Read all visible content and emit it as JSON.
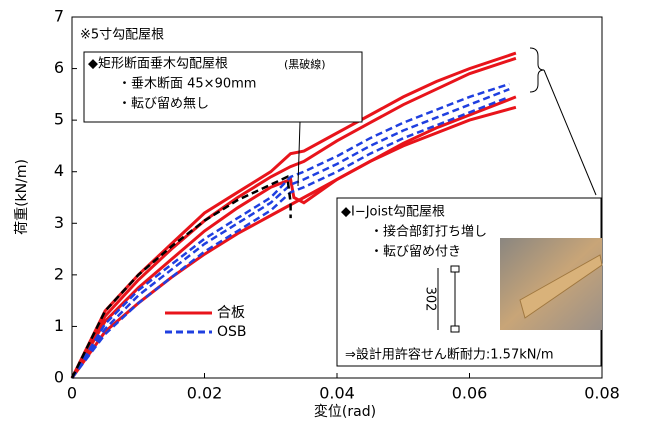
{
  "chart_data": {
    "type": "line",
    "x_label": "変位(rad)",
    "y_label": "荷重(kN/m)",
    "xlim": [
      0,
      0.08
    ],
    "xticks": [
      0,
      0.02,
      0.04,
      0.06,
      0.08
    ],
    "ylim": [
      0,
      7
    ],
    "yticks": [
      0,
      1,
      2,
      3,
      4,
      5,
      6,
      7
    ],
    "series": [
      {
        "name": "合板",
        "color": "#e8141b",
        "style": "solid",
        "curves": [
          {
            "x": [
              0,
              0.005,
              0.01,
              0.015,
              0.02,
              0.025,
              0.03,
              0.033,
              0.035,
              0.04,
              0.045,
              0.05,
              0.055,
              0.06,
              0.067
            ],
            "values": [
              0,
              1.3,
              2.0,
              2.6,
              3.2,
              3.6,
              4.0,
              4.35,
              4.4,
              4.75,
              5.1,
              5.45,
              5.75,
              6.0,
              6.3
            ]
          },
          {
            "x": [
              0,
              0.005,
              0.01,
              0.015,
              0.02,
              0.025,
              0.03,
              0.033,
              0.035,
              0.04,
              0.045,
              0.05,
              0.055,
              0.06,
              0.067
            ],
            "values": [
              0,
              1.2,
              1.9,
              2.5,
              3.05,
              3.5,
              3.9,
              4.1,
              4.2,
              4.6,
              4.95,
              5.3,
              5.6,
              5.9,
              6.2
            ]
          },
          {
            "x": [
              0,
              0.005,
              0.01,
              0.015,
              0.02,
              0.025,
              0.03,
              0.033,
              0.0335,
              0.035,
              0.04,
              0.045,
              0.05,
              0.055,
              0.06,
              0.067
            ],
            "values": [
              0,
              1.1,
              1.75,
              2.3,
              2.85,
              3.3,
              3.7,
              3.85,
              3.5,
              3.4,
              3.85,
              4.2,
              4.55,
              4.85,
              5.1,
              5.45
            ]
          },
          {
            "x": [
              0,
              0.005,
              0.01,
              0.015,
              0.02,
              0.025,
              0.03,
              0.035,
              0.04,
              0.045,
              0.05,
              0.055,
              0.06,
              0.067
            ],
            "values": [
              0,
              0.9,
              1.45,
              1.95,
              2.4,
              2.8,
              3.15,
              3.5,
              3.85,
              4.2,
              4.5,
              4.75,
              5.0,
              5.25
            ]
          }
        ]
      },
      {
        "name": "OSB",
        "color": "#1f3fe0",
        "style": "dashed",
        "curves": [
          {
            "x": [
              0,
              0.005,
              0.01,
              0.015,
              0.02,
              0.025,
              0.03,
              0.033,
              0.035,
              0.04,
              0.045,
              0.05,
              0.055,
              0.06,
              0.066
            ],
            "values": [
              0,
              1.05,
              1.7,
              2.2,
              2.7,
              3.1,
              3.5,
              3.9,
              4.0,
              4.3,
              4.65,
              4.95,
              5.2,
              5.45,
              5.7
            ]
          },
          {
            "x": [
              0,
              0.005,
              0.01,
              0.015,
              0.02,
              0.025,
              0.03,
              0.033,
              0.035,
              0.04,
              0.045,
              0.05,
              0.055,
              0.06,
              0.066
            ],
            "values": [
              0,
              0.95,
              1.6,
              2.1,
              2.6,
              3.0,
              3.4,
              3.75,
              3.85,
              4.15,
              4.5,
              4.8,
              5.05,
              5.3,
              5.6
            ]
          },
          {
            "x": [
              0,
              0.005,
              0.01,
              0.015,
              0.02,
              0.025,
              0.03,
              0.033,
              0.035,
              0.04,
              0.045,
              0.05,
              0.055,
              0.06,
              0.066
            ],
            "values": [
              0,
              0.85,
              1.45,
              1.95,
              2.45,
              2.85,
              3.25,
              3.6,
              3.7,
              4.0,
              4.35,
              4.65,
              4.9,
              5.15,
              5.45
            ]
          }
        ]
      },
      {
        "color": "#000000",
        "style": "dashed",
        "curves": [
          {
            "x": [
              0,
              0.005,
              0.01,
              0.015,
              0.02,
              0.025,
              0.03,
              0.0325,
              0.033,
              0.033
            ],
            "values": [
              0,
              1.3,
              2.0,
              2.55,
              3.05,
              3.45,
              3.75,
              3.9,
              3.4,
              3.1
            ]
          }
        ]
      }
    ],
    "annotations": {
      "roof": "※5寸勾配屋根",
      "box1": [
        "◆矩形断面垂木勾配屋根",
        "(黒破線)",
        "・垂木断面 45×90mm",
        "・転び留め無し"
      ],
      "box2": [
        "◆I−Joist勾配屋根",
        "・接合部釘打ち増し",
        "・転び留め付き"
      ],
      "depth": "302",
      "allowable": "⇒設計用許容せん断耐力:1.57kN/m"
    }
  }
}
